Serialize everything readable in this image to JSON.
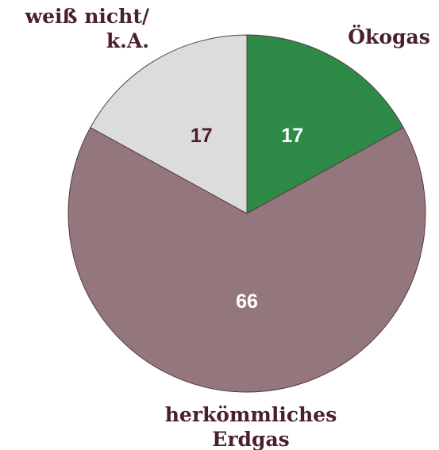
{
  "chart_data": {
    "type": "pie",
    "categories": [
      "Ökogas",
      "herkömmliches\nErdgas",
      "weiß nicht/\nk.A."
    ],
    "values": [
      17,
      66,
      17
    ],
    "colors": [
      "#2e8b47",
      "#93777c",
      "#dcdcdc"
    ],
    "label_colors": [
      "#ffffff",
      "#ffffff",
      "#4a1f2e"
    ]
  }
}
